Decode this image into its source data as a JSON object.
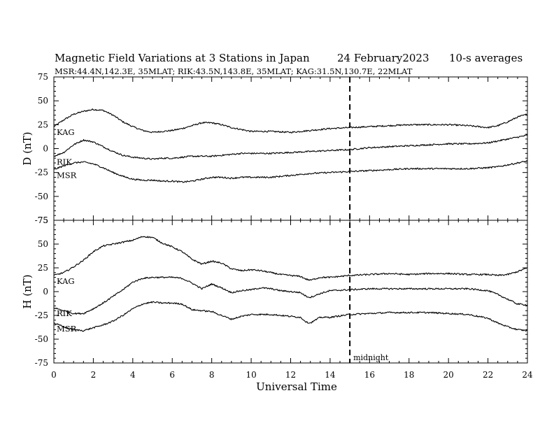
{
  "header": {
    "title": "Magnetic Field Variations at 3 Stations in Japan",
    "date": "24 February2023",
    "averaging": "10-s averages",
    "stations_line": "MSR:44.4N,142.3E, 35MLAT;  RIK:43.5N,143.8E, 35MLAT;  KAG:31.5N,130.7E, 22MLAT"
  },
  "chart_data": {
    "type": "line",
    "xlabel": "Universal Time",
    "xlim": [
      0,
      24
    ],
    "xticks": [
      0,
      2,
      4,
      6,
      8,
      10,
      12,
      14,
      16,
      18,
      20,
      22,
      24
    ],
    "annotation": {
      "x": 15,
      "label": "midnight",
      "style": "dashed vertical line"
    },
    "panels": [
      {
        "ylabel": "D (nT)",
        "ylim": [
          -75,
          75
        ],
        "yticks": [
          75,
          50,
          25,
          0,
          -25,
          -50,
          -75
        ],
        "series": [
          {
            "name": "KAG",
            "x": [
              0,
              0.5,
              1,
              1.5,
              2,
              2.5,
              3,
              3.5,
              4,
              4.5,
              5,
              5.5,
              6,
              6.5,
              7,
              7.5,
              8,
              8.5,
              9,
              9.5,
              10,
              11,
              12,
              13,
              14,
              15,
              16,
              17,
              18,
              19,
              20,
              21,
              22,
              22.5,
              23,
              23.5,
              24
            ],
            "values": [
              23,
              30,
              36,
              39,
              41,
              40,
              35,
              28,
              23,
              19,
              17,
              18,
              19,
              21,
              24,
              27,
              27,
              25,
              22,
              20,
              18,
              18,
              17,
              19,
              21,
              22,
              23,
              24,
              25,
              25,
              25,
              24,
              22,
              24,
              28,
              33,
              36
            ]
          },
          {
            "name": "RIK",
            "x": [
              0,
              0.5,
              1,
              1.5,
              2,
              2.5,
              3,
              3.5,
              4,
              4.5,
              5,
              5.5,
              6,
              6.5,
              7,
              7.5,
              8,
              8.5,
              9,
              9.5,
              10,
              11,
              12,
              13,
              14,
              15,
              16,
              17,
              18,
              19,
              20,
              21,
              22,
              22.5,
              23,
              23.5,
              24
            ],
            "values": [
              -8,
              -4,
              4,
              9,
              7,
              2,
              -3,
              -7,
              -9,
              -10,
              -11,
              -10,
              -10,
              -9,
              -8,
              -8,
              -8,
              -7,
              -6,
              -5,
              -5,
              -5,
              -4,
              -3,
              -2,
              -1,
              1,
              2,
              3,
              4,
              5,
              5,
              6,
              8,
              10,
              12,
              14
            ]
          },
          {
            "name": "MSR",
            "x": [
              0,
              0.5,
              1,
              1.5,
              2,
              2.5,
              3,
              3.5,
              4,
              4.5,
              5,
              5.5,
              6,
              6.5,
              7,
              7.5,
              8,
              8.5,
              9,
              9.5,
              10,
              11,
              12,
              13,
              14,
              15,
              16,
              17,
              18,
              19,
              20,
              21,
              22,
              22.5,
              23,
              23.5,
              24
            ],
            "values": [
              -22,
              -18,
              -15,
              -14,
              -16,
              -20,
              -25,
              -29,
              -32,
              -33,
              -33,
              -34,
              -34,
              -35,
              -34,
              -32,
              -30,
              -30,
              -31,
              -30,
              -30,
              -30,
              -28,
              -26,
              -25,
              -24,
              -23,
              -22,
              -21,
              -21,
              -21,
              -21,
              -20,
              -19,
              -17,
              -15,
              -13
            ]
          }
        ]
      },
      {
        "ylabel": "H (nT)",
        "ylim": [
          -75,
          75
        ],
        "yticks": [
          75,
          50,
          25,
          0,
          -25,
          -50,
          -75
        ],
        "series": [
          {
            "name": "KAG",
            "x": [
              0,
              0.5,
              1,
              1.5,
              2,
              2.5,
              3,
              3.5,
              4,
              4.5,
              5,
              5.5,
              6,
              6.5,
              7,
              7.5,
              8,
              8.5,
              9,
              9.5,
              10,
              10.5,
              11,
              11.5,
              12,
              12.5,
              12.8,
              13,
              13.5,
              14,
              15,
              16,
              17,
              18,
              19,
              20,
              21,
              22,
              22.5,
              23,
              23.5,
              24
            ],
            "values": [
              17,
              20,
              26,
              33,
              42,
              48,
              50,
              52,
              54,
              58,
              57,
              51,
              47,
              42,
              34,
              29,
              32,
              30,
              24,
              22,
              23,
              22,
              20,
              18,
              17,
              16,
              13,
              12,
              15,
              15,
              17,
              18,
              19,
              18,
              19,
              19,
              18,
              18,
              17,
              18,
              21,
              25
            ]
          },
          {
            "name": "RIK",
            "x": [
              0,
              0.5,
              1,
              1.5,
              2,
              2.5,
              3,
              3.5,
              4,
              4.5,
              5,
              5.5,
              6,
              6.5,
              7,
              7.5,
              8,
              8.5,
              9,
              9.5,
              10,
              10.5,
              11,
              11.5,
              12,
              12.5,
              12.8,
              13,
              13.5,
              14,
              15,
              16,
              17,
              18,
              19,
              20,
              21,
              22,
              22.5,
              23,
              23.5,
              24
            ],
            "values": [
              -17,
              -20,
              -23,
              -23,
              -18,
              -12,
              -5,
              2,
              10,
              14,
              15,
              15,
              15,
              14,
              9,
              3,
              8,
              4,
              -1,
              1,
              2,
              4,
              3,
              1,
              0,
              -1,
              -5,
              -6,
              -2,
              1,
              2,
              3,
              3,
              3,
              3,
              3,
              3,
              1,
              -3,
              -8,
              -13,
              -14
            ]
          },
          {
            "name": "MSR",
            "x": [
              0,
              0.5,
              1,
              1.5,
              2,
              2.5,
              3,
              3.5,
              4,
              4.5,
              5,
              5.5,
              6,
              6.5,
              7,
              7.5,
              8,
              8.5,
              9,
              9.5,
              10,
              10.5,
              11,
              11.5,
              12,
              12.5,
              12.8,
              13,
              13.5,
              14,
              15,
              16,
              17,
              18,
              19,
              20,
              21,
              22,
              22.5,
              23,
              23.5,
              24
            ],
            "values": [
              -33,
              -37,
              -40,
              -41,
              -38,
              -35,
              -31,
              -25,
              -18,
              -13,
              -11,
              -12,
              -12,
              -13,
              -19,
              -20,
              -21,
              -25,
              -29,
              -26,
              -24,
              -24,
              -24,
              -25,
              -26,
              -27,
              -32,
              -33,
              -27,
              -27,
              -24,
              -23,
              -22,
              -22,
              -22,
              -23,
              -24,
              -28,
              -33,
              -37,
              -40,
              -41
            ]
          }
        ]
      }
    ]
  }
}
